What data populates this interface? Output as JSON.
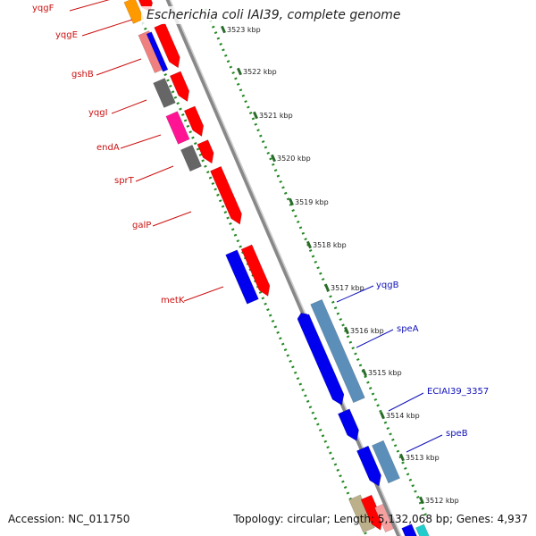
{
  "header": {
    "title": "Escherichia coli IAI39, complete genome"
  },
  "footer": {
    "accession": "Accession: NC_011750",
    "topology": "Topology: circular; Length: 5,132,068 bp; Genes: 4,937"
  },
  "colors": {
    "backbone": "#888888",
    "scale_dots": "#228822",
    "forward_label": "#cc1111",
    "reverse_label": "#1111bb",
    "cds_forward": "#ff0000",
    "cds_reverse": "#0000ee",
    "trna": "#5b8fb9",
    "gray_feature": "#666666",
    "pink_feature": "#ff1493",
    "orange_feature": "#ff9900",
    "salmon_feature": "#f08080"
  },
  "scale": {
    "unit": "kbp",
    "ticks": [
      "3523 kbp",
      "3522 kbp",
      "3521 kbp",
      "3520 kbp",
      "3519 kbp",
      "3518 kbp",
      "3517 kbp",
      "3516 kbp",
      "3515 kbp",
      "3514 kbp",
      "3513 kbp",
      "3512 kbp"
    ]
  },
  "genes_left": [
    "yqgF",
    "yqgE",
    "gshB",
    "yqgI",
    "endA",
    "sprT",
    "galP",
    "metK"
  ],
  "genes_right": [
    "yqgB",
    "speA",
    "ECIAI39_3357",
    "speB"
  ]
}
